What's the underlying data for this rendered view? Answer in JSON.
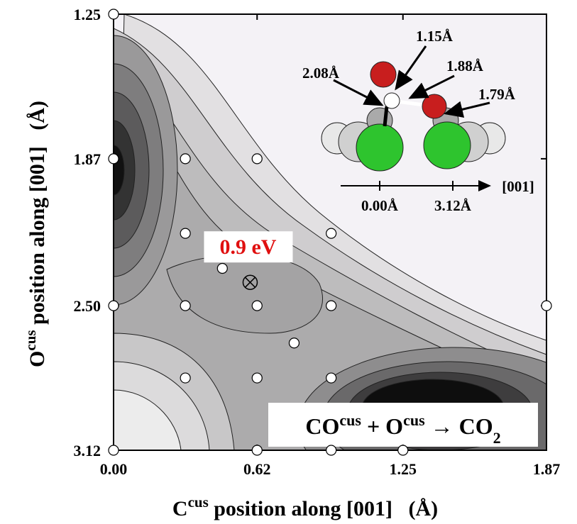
{
  "chart_data": {
    "type": "scatter",
    "xlabel": [
      "C",
      "cus",
      " position along [001]   (Å)"
    ],
    "ylabel": [
      "O",
      "cus",
      " position along [001]   (Å)"
    ],
    "xlim": [
      0,
      1.87
    ],
    "ylim": [
      1.25,
      3.12
    ],
    "y_inverted": true,
    "xticks": [
      {
        "value": 0,
        "label": "0.00"
      },
      0.62,
      1.25,
      1.87
    ],
    "yticks": [
      1.25,
      1.87,
      {
        "value": 2.5,
        "label": "2.50"
      },
      3.12
    ],
    "x": [
      0,
      0,
      0.31,
      0.62,
      0.31,
      0.94,
      0.47,
      0,
      0.31,
      0.62,
      0.94,
      1.87,
      0.78,
      0.31,
      0.62,
      0.94,
      0,
      0.62,
      0.94,
      1.25
    ],
    "y": [
      1.25,
      1.87,
      1.87,
      1.87,
      2.19,
      2.19,
      2.34,
      2.5,
      2.5,
      2.5,
      2.5,
      2.5,
      2.66,
      2.81,
      2.81,
      2.81,
      3.12,
      3.12,
      3.12,
      3.12
    ],
    "color": "#ffffff",
    "saddle": {
      "x": 0.59,
      "y": 2.4,
      "label": "0.9 eV"
    },
    "reaction": [
      "CO",
      "cus",
      " + O",
      "cus",
      " → CO",
      "2"
    ],
    "inset": {
      "bond_labels": [
        "1.15Å",
        "1.88Å",
        "2.08Å",
        "1.79Å"
      ],
      "axis_label": "[001]",
      "axis_ticks": [
        "0.00Å",
        "3.12Å"
      ]
    }
  }
}
